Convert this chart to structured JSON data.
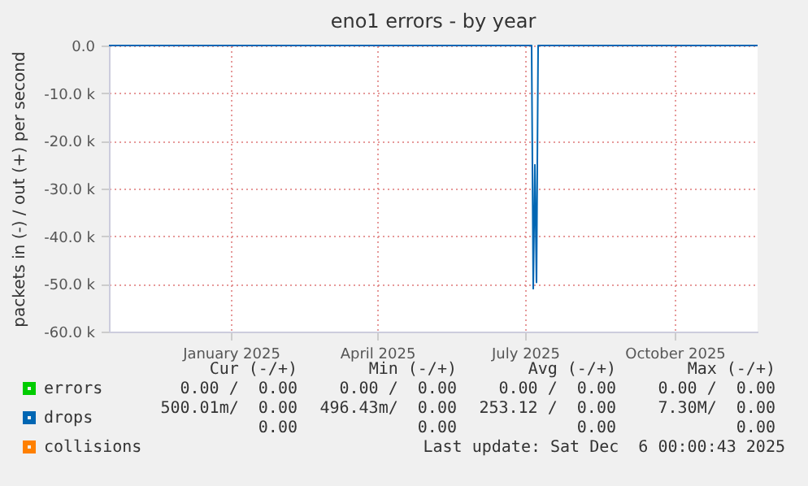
{
  "chart_data": {
    "type": "line",
    "title": "eno1 errors - by year",
    "ylabel": "packets in (-) / out (+) per second",
    "x": [
      "2024-11-02",
      "2025-07-20",
      "2025-07-21",
      "2025-07-22",
      "2025-07-23",
      "2025-07-24",
      "2025-12-06"
    ],
    "series": [
      {
        "name": "errors",
        "color": "#00cc00",
        "values": [
          null,
          null,
          null,
          null,
          null,
          null,
          null
        ]
      },
      {
        "name": "drops",
        "color": "#0066b3",
        "values": [
          0,
          0,
          -51000,
          -25000,
          -49700,
          0,
          0
        ]
      },
      {
        "name": "collisions",
        "color": "#ff8000",
        "values": [
          null,
          null,
          null,
          null,
          null,
          null,
          null
        ]
      }
    ],
    "xlim": [
      "2024-11-02",
      "2025-12-06"
    ],
    "xticks": [
      {
        "value": "2025-01-16",
        "label": "January 2025"
      },
      {
        "value": "2025-04-16",
        "label": "April 2025"
      },
      {
        "value": "2025-07-16",
        "label": "July 2025"
      },
      {
        "value": "2025-10-16",
        "label": "October 2025"
      }
    ],
    "ylim": [
      -60000,
      0
    ],
    "yticks": [
      {
        "value": -60000,
        "label": "-60.0 k"
      },
      {
        "value": -50000,
        "label": "-50.0 k"
      },
      {
        "value": -40000,
        "label": "-40.0 k"
      },
      {
        "value": -30000,
        "label": "-30.0 k"
      },
      {
        "value": -20000,
        "label": "-20.0 k"
      },
      {
        "value": -10000,
        "label": "-10.0 k"
      },
      {
        "value": 0,
        "label": "0.0"
      }
    ],
    "grid": true,
    "legend": "bottom left",
    "marker": "none",
    "line_style": "solid",
    "annotations": [
      "Cur (-/+)",
      "Min (-/+)",
      "Avg (-/+)",
      "Max (-/+)",
      "0.00 /  0.00",
      "0.00 /  0.00",
      "0.00 /  0.00",
      "0.00 /  0.00",
      "500.01m/  0.00",
      "496.43m/  0.00",
      "253.12 /  0.00",
      "7.30M/  0.00",
      "0.00",
      "0.00",
      "0.00",
      "0.00",
      "Last update: Sat Dec  6 00:00:43 2025"
    ]
  }
}
